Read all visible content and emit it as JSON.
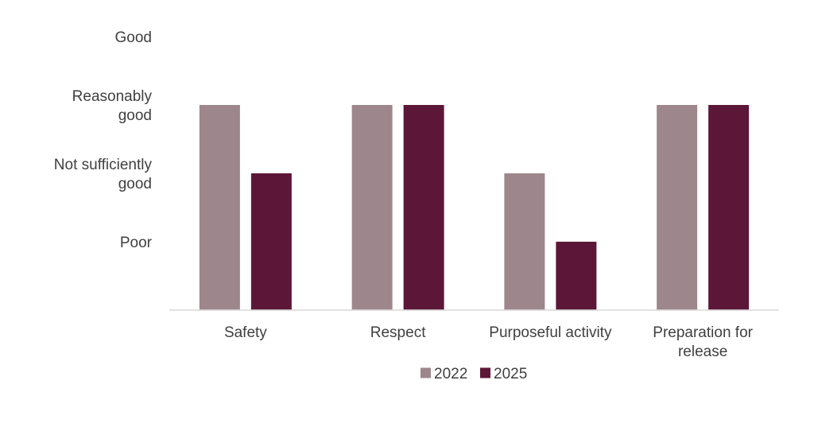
{
  "chart_data": {
    "type": "bar",
    "categories": [
      [
        "Safety"
      ],
      [
        "Respect"
      ],
      [
        "Purposeful activity"
      ],
      [
        "Preparation for",
        "release"
      ]
    ],
    "y_levels": [
      {
        "value": 1,
        "label": [
          "Poor"
        ]
      },
      {
        "value": 2,
        "label": [
          "Not sufficiently",
          "good"
        ]
      },
      {
        "value": 3,
        "label": [
          "Reasonably",
          "good"
        ]
      },
      {
        "value": 4,
        "label": [
          "Good"
        ]
      }
    ],
    "ylim": [
      0,
      4
    ],
    "series": [
      {
        "name": "2022",
        "color": "#9e868d",
        "values": [
          3,
          3,
          2,
          3
        ]
      },
      {
        "name": "2025",
        "color": "#5c1738",
        "values": [
          2,
          3,
          1,
          3
        ]
      }
    ],
    "grid": false,
    "legend_position": "bottom",
    "axis_color": "#d9d9d9"
  }
}
